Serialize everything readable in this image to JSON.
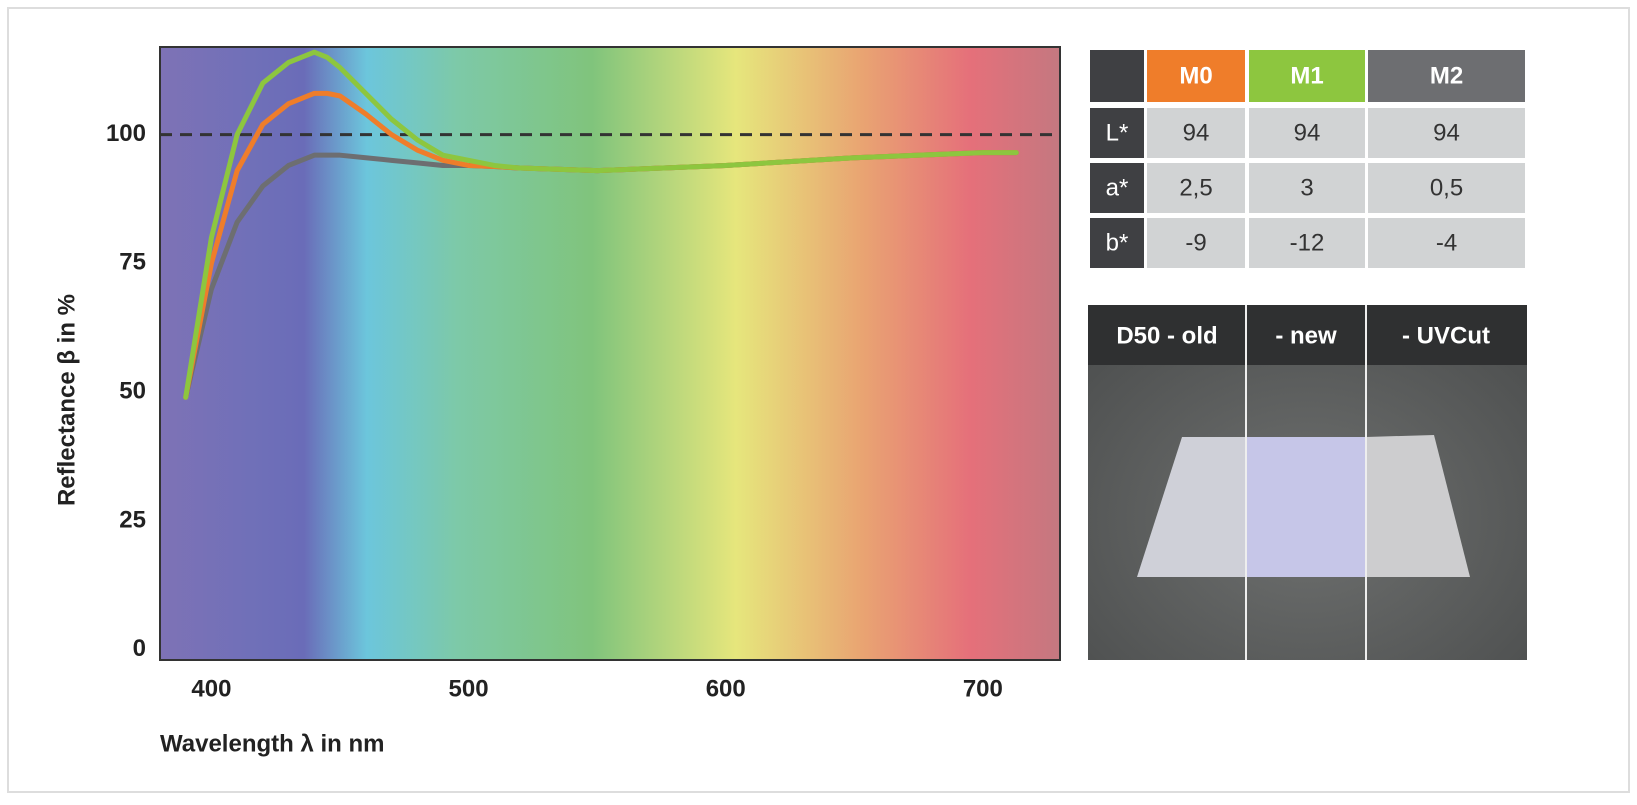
{
  "chart_data": {
    "type": "line",
    "x_label": "Wavelength λ in nm",
    "y_label": "Reflectance β in %",
    "x": [
      390,
      400,
      410,
      420,
      430,
      440,
      445,
      450,
      460,
      470,
      480,
      490,
      500,
      510,
      520,
      550,
      600,
      650,
      700,
      713
    ],
    "series": [
      {
        "name": "M0",
        "color": "#ef7d2a",
        "values": [
          49,
          75,
          93,
          102,
          106,
          108,
          108,
          107.5,
          104,
          100,
          97,
          95,
          94,
          93.8,
          93.5,
          93,
          94,
          95.5,
          96.5,
          96.5
        ]
      },
      {
        "name": "M1",
        "color": "#8dc63f",
        "values": [
          49,
          80,
          100,
          110,
          114,
          116,
          115,
          113,
          108,
          103,
          99,
          96,
          95,
          94,
          93.5,
          93,
          94,
          95.5,
          96.5,
          96.5
        ]
      },
      {
        "name": "M2",
        "color": "#6d6e71",
        "values": [
          49,
          70,
          83,
          90,
          94,
          96,
          96,
          96,
          95.5,
          95,
          94.5,
          94,
          94,
          93.8,
          93.5,
          93,
          94,
          95.5,
          96.5,
          96.5
        ]
      }
    ],
    "reference_line": 100,
    "xlim": [
      380,
      730
    ],
    "ylim": [
      -2,
      117
    ],
    "xticks": [
      400,
      500,
      600,
      700
    ],
    "yticks": [
      0,
      25,
      50,
      75,
      100
    ],
    "grid": false
  },
  "table": {
    "rows": [
      {
        "label": "L*",
        "cells": [
          "94",
          "94",
          "94"
        ]
      },
      {
        "label": "a*",
        "cells": [
          "2,5",
          "3",
          "0,5"
        ]
      },
      {
        "label": "b*",
        "cells": [
          "-9",
          "-12",
          "-4"
        ]
      }
    ]
  },
  "photo": {
    "labels": [
      "D50 - old",
      "- new",
      "- UVCut"
    ]
  }
}
